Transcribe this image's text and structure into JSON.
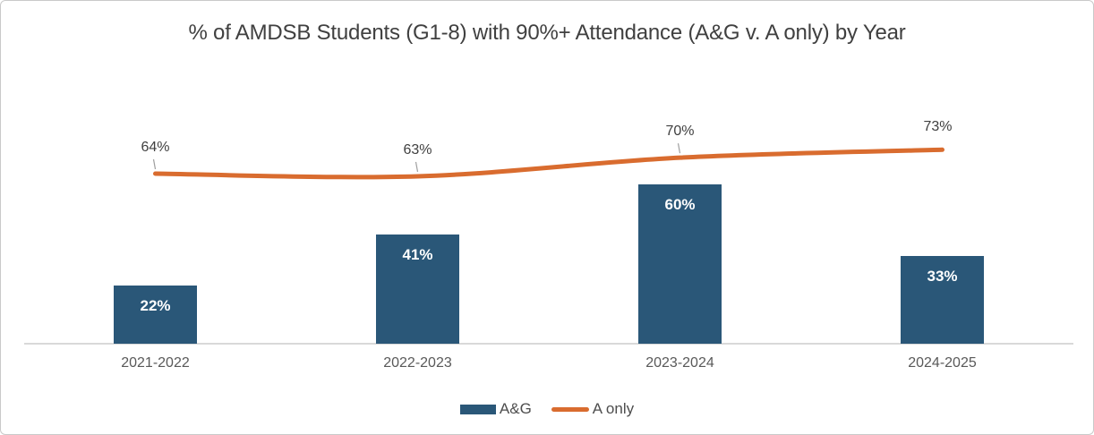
{
  "chart_data": {
    "type": "bar",
    "subtype": "combo-bar-line",
    "title": "% of AMDSB Students (G1-8) with 90%+ Attendance (A&G v. A only) by Year",
    "categories": [
      "2021-2022",
      "2022-2023",
      "2023-2024",
      "2024-2025"
    ],
    "series": [
      {
        "name": "A&G",
        "type": "bar",
        "values": [
          22,
          41,
          60,
          33
        ],
        "data_labels": [
          "22%",
          "41%",
          "60%",
          "33%"
        ],
        "color": "#2a5778",
        "label_color": "#ffffff"
      },
      {
        "name": "A only",
        "type": "line",
        "values": [
          64,
          63,
          70,
          73
        ],
        "data_labels": [
          "64%",
          "63%",
          "70%",
          "73%"
        ],
        "color": "#d96c2f",
        "label_color": "#404040"
      }
    ],
    "value_suffix": "%",
    "xlabel": "",
    "ylabel": "",
    "ylim": [
      0,
      100
    ],
    "grid": false,
    "y_axis_visible": false,
    "legend_position": "bottom",
    "axis_line_color": "#d9d9d9",
    "tick_label_color": "#595959",
    "leader_line_color": "#9e9e9e",
    "title_color": "#404040"
  }
}
